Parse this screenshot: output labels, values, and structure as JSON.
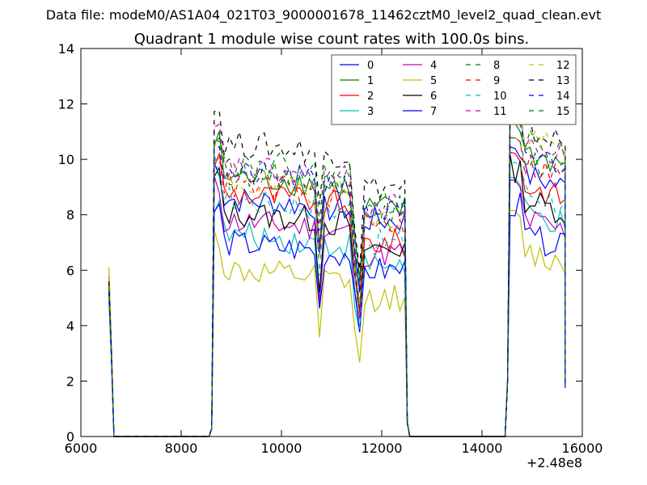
{
  "suptitle": "Data file: modeM0/AS1A04_021T03_9000001678_11462cztM0_level2_quad_clean.evt",
  "chart_data": {
    "type": "line",
    "title": "Quadrant 1 module wise count rates with 100.0s bins.",
    "xlabel": "",
    "ylabel": "",
    "xlim": [
      6000,
      16000
    ],
    "ylim": [
      0,
      14
    ],
    "x_offset_label": "+2.48e8",
    "xticks": [
      6000,
      8000,
      10000,
      12000,
      14000,
      16000
    ],
    "yticks": [
      0,
      2,
      4,
      6,
      8,
      10,
      12,
      14
    ],
    "legend_location": "top-right",
    "segments": [
      {
        "start": 6560,
        "end": 6660
      },
      {
        "start": 8660,
        "end": 12460
      },
      {
        "start": 14560,
        "end": 15660
      }
    ],
    "gaps": [
      [
        6660,
        8560
      ],
      [
        12460,
        14460
      ]
    ],
    "series": [
      {
        "name": "0",
        "color": "#0000ff",
        "style": "solid",
        "edge_value": 5.6,
        "plateau_value": 8.6,
        "dip_value": 7.8,
        "late_value": 9.6
      },
      {
        "name": "1",
        "color": "#008000",
        "style": "solid",
        "edge_value": 5.5,
        "plateau_value": 9.4,
        "dip_value": 8.2,
        "late_value": 10.4
      },
      {
        "name": "2",
        "color": "#ff0000",
        "style": "solid",
        "edge_value": 5.8,
        "plateau_value": 8.8,
        "dip_value": 7.0,
        "late_value": 9.2
      },
      {
        "name": "3",
        "color": "#00bfbf",
        "style": "solid",
        "edge_value": 5.2,
        "plateau_value": 7.3,
        "dip_value": 6.2,
        "late_value": 8.2
      },
      {
        "name": "4",
        "color": "#bf00bf",
        "style": "solid",
        "edge_value": 5.4,
        "plateau_value": 7.8,
        "dip_value": 6.6,
        "late_value": 8.0
      },
      {
        "name": "5",
        "color": "#bfbf00",
        "style": "solid",
        "edge_value": 6.1,
        "plateau_value": 6.0,
        "dip_value": 5.0,
        "late_value": 6.8
      },
      {
        "name": "6",
        "color": "#000000",
        "style": "solid",
        "edge_value": 5.3,
        "plateau_value": 8.1,
        "dip_value": 6.8,
        "late_value": 8.7
      },
      {
        "name": "7",
        "color": "#0000ff",
        "style": "solid",
        "edge_value": 5.0,
        "plateau_value": 7.0,
        "dip_value": 6.0,
        "late_value": 7.4
      },
      {
        "name": "8",
        "color": "#008000",
        "style": "dashed",
        "edge_value": 5.4,
        "plateau_value": 9.6,
        "dip_value": 7.9,
        "late_value": 10.1
      },
      {
        "name": "9",
        "color": "#ff0000",
        "style": "dashed",
        "edge_value": 5.5,
        "plateau_value": 9.1,
        "dip_value": 7.6,
        "late_value": 10.0
      },
      {
        "name": "10",
        "color": "#00bfbf",
        "style": "dashed",
        "edge_value": 5.1,
        "plateau_value": 8.6,
        "dip_value": 7.0,
        "late_value": 9.0
      },
      {
        "name": "11",
        "color": "#bf00bf",
        "style": "dashed",
        "edge_value": 5.3,
        "plateau_value": 9.7,
        "dip_value": 8.3,
        "late_value": 10.6
      },
      {
        "name": "12",
        "color": "#bfbf00",
        "style": "dashed",
        "edge_value": 6.1,
        "plateau_value": 9.2,
        "dip_value": 7.8,
        "late_value": 10.9
      },
      {
        "name": "13",
        "color": "#000000",
        "style": "dashed",
        "edge_value": 5.6,
        "plateau_value": 10.6,
        "dip_value": 9.0,
        "late_value": 11.2
      },
      {
        "name": "14",
        "color": "#0000ff",
        "style": "dashed",
        "edge_value": 5.2,
        "plateau_value": 9.5,
        "dip_value": 8.1,
        "late_value": 10.4
      },
      {
        "name": "15",
        "color": "#008000",
        "style": "dashed",
        "edge_value": 5.4,
        "plateau_value": 9.9,
        "dip_value": 8.4,
        "late_value": 10.8
      }
    ]
  }
}
